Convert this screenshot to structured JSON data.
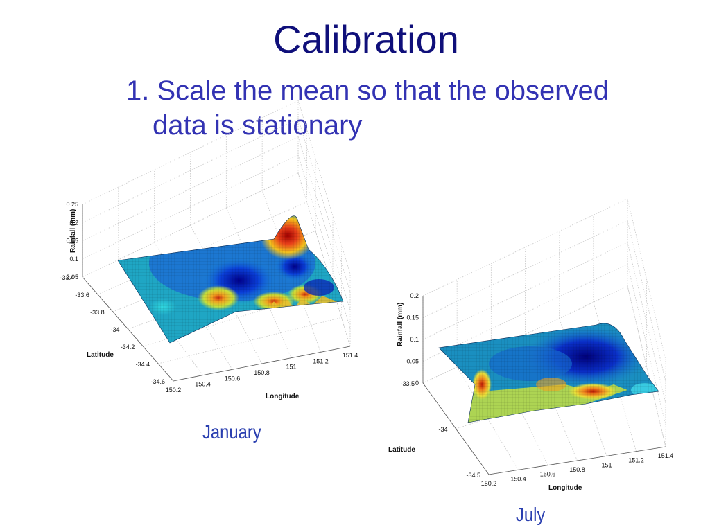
{
  "slide": {
    "title": "Calibration",
    "bullet_line1": "1. Scale the mean so that the observed",
    "bullet_line2": "data is stationary"
  },
  "colors": {
    "title": "#0f0f7a",
    "bullet": "#3333b3",
    "caption": "#2a3fb0",
    "colormap": "jet"
  },
  "chart_data": [
    {
      "type": "surface",
      "caption": "January",
      "xlabel": "Longitude",
      "ylabel": "Latitude",
      "zlabel": "Rainfall (mm)",
      "x_ticks": [
        "150.2",
        "150.4",
        "150.6",
        "150.8",
        "151",
        "151.2",
        "151.4"
      ],
      "y_ticks": [
        "-33.4",
        "-33.6",
        "-33.8",
        "-34",
        "-34.2",
        "-34.4",
        "-34.6"
      ],
      "z_ticks": [
        "0.05",
        "0.1",
        "0.15",
        "0.2",
        "0.25"
      ],
      "xlim": [
        150.2,
        151.4
      ],
      "ylim": [
        -34.6,
        -33.4
      ],
      "zlim": [
        0.05,
        0.25
      ],
      "grid": true
    },
    {
      "type": "surface",
      "caption": "July",
      "xlabel": "Longitude",
      "ylabel": "Latitude",
      "zlabel": "Rainfall (mm)",
      "x_ticks": [
        "150.2",
        "150.4",
        "150.6",
        "150.8",
        "151",
        "151.2",
        "151.4"
      ],
      "y_ticks": [
        "-33.5",
        "-34",
        "-34.5"
      ],
      "z_ticks": [
        "0",
        "0.05",
        "0.1",
        "0.15",
        "0.2"
      ],
      "xlim": [
        150.2,
        151.4
      ],
      "ylim": [
        -34.5,
        -33.5
      ],
      "zlim": [
        0,
        0.2
      ],
      "grid": true
    }
  ]
}
